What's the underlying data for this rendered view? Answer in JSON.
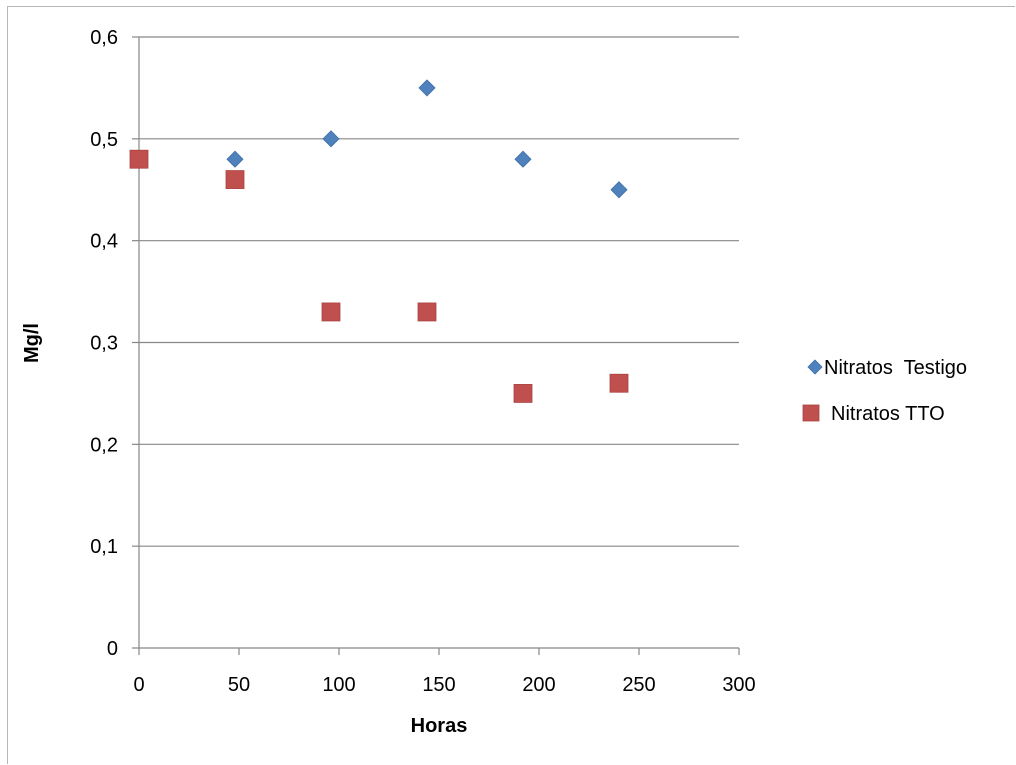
{
  "chart_data": {
    "type": "scatter",
    "xlabel": "Horas",
    "ylabel": "Mg/l",
    "xlim": [
      0,
      300
    ],
    "ylim": [
      0,
      0.6
    ],
    "x_ticks": [
      "0",
      "50",
      "100",
      "150",
      "200",
      "250",
      "300"
    ],
    "y_ticks": [
      "0",
      "0,1",
      "0,2",
      "0,3",
      "0,4",
      "0,5",
      "0,6"
    ],
    "grid": "horizontal",
    "legend_position": "right",
    "series": [
      {
        "name": "Nitratos  Testigo",
        "marker": "diamond",
        "color": "#4f81bd",
        "points": [
          {
            "x": 48,
            "y": 0.48
          },
          {
            "x": 96,
            "y": 0.5
          },
          {
            "x": 144,
            "y": 0.55
          },
          {
            "x": 192,
            "y": 0.48
          },
          {
            "x": 240,
            "y": 0.45
          }
        ]
      },
      {
        "name": "Nitratos TTO",
        "marker": "square",
        "color": "#c0504d",
        "points": [
          {
            "x": 0,
            "y": 0.48
          },
          {
            "x": 48,
            "y": 0.46
          },
          {
            "x": 96,
            "y": 0.33
          },
          {
            "x": 144,
            "y": 0.33
          },
          {
            "x": 192,
            "y": 0.25
          },
          {
            "x": 240,
            "y": 0.26
          }
        ]
      }
    ]
  }
}
